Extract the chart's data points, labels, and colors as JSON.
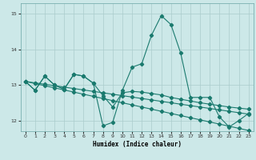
{
  "xlabel": "Humidex (Indice chaleur)",
  "ylabel": "",
  "xlim": [
    -0.5,
    23.5
  ],
  "ylim": [
    11.7,
    15.3
  ],
  "yticks": [
    12,
    13,
    14,
    15
  ],
  "xticks": [
    0,
    1,
    2,
    3,
    4,
    5,
    6,
    7,
    8,
    9,
    10,
    11,
    12,
    13,
    14,
    15,
    16,
    17,
    18,
    19,
    20,
    21,
    22,
    23
  ],
  "bg_color": "#cce8e8",
  "grid_color": "#aacccc",
  "line_color": "#1a7a6e",
  "line1": [
    13.1,
    12.85,
    13.25,
    13.0,
    12.88,
    13.3,
    13.25,
    13.05,
    11.85,
    11.95,
    12.85,
    13.5,
    13.6,
    14.4,
    14.95,
    14.7,
    13.9,
    12.65,
    12.65,
    12.65,
    12.1,
    11.82,
    12.0,
    12.2
  ],
  "line2": [
    13.1,
    13.04,
    12.98,
    12.92,
    12.86,
    12.8,
    12.74,
    12.68,
    12.62,
    12.56,
    12.5,
    12.44,
    12.38,
    12.32,
    12.26,
    12.2,
    12.14,
    12.08,
    12.02,
    11.96,
    11.9,
    11.84,
    11.78,
    11.72
  ],
  "line3": [
    13.1,
    13.06,
    13.02,
    12.98,
    12.94,
    12.9,
    12.86,
    12.82,
    12.78,
    12.74,
    12.7,
    12.66,
    12.62,
    12.58,
    12.54,
    12.5,
    12.46,
    12.42,
    12.38,
    12.34,
    12.3,
    12.26,
    12.22,
    12.18
  ],
  "line4": [
    13.1,
    12.85,
    13.25,
    13.0,
    12.88,
    13.3,
    13.25,
    13.05,
    12.7,
    12.38,
    12.78,
    12.82,
    12.8,
    12.76,
    12.72,
    12.65,
    12.6,
    12.55,
    12.5,
    12.46,
    12.42,
    12.38,
    12.35,
    12.32
  ]
}
